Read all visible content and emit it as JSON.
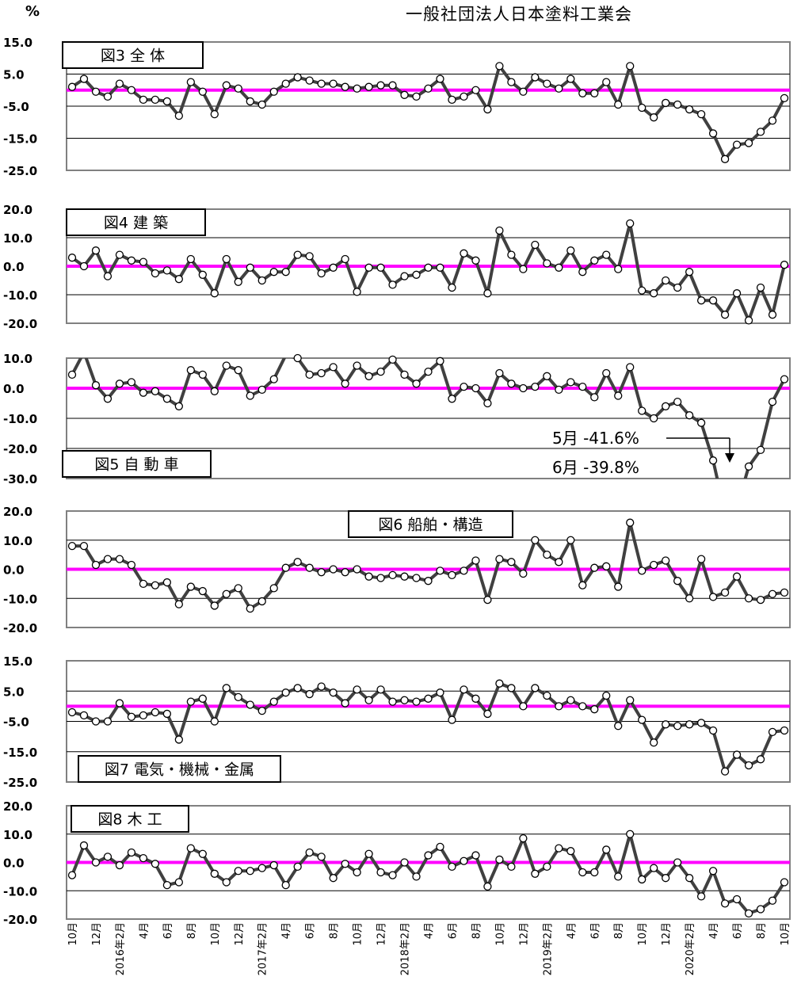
{
  "header": {
    "unit": "%",
    "organization": "一般社団法人日本塗料工業会"
  },
  "colors": {
    "line": "#404040",
    "zero_line": "#ff00ff",
    "marker_fill": "#ffffff",
    "frame": "#808080",
    "grid": "#000000"
  },
  "x_axis": {
    "labels": [
      "10月",
      "",
      "12月",
      "",
      "2016年2月",
      "",
      "4月",
      "",
      "6月",
      "",
      "8月",
      "",
      "10月",
      "",
      "12月",
      "",
      "2017年2月",
      "",
      "4月",
      "",
      "6月",
      "",
      "8月",
      "",
      "10月",
      "",
      "12月",
      "",
      "2018年2月",
      "",
      "4月",
      "",
      "6月",
      "",
      "8月",
      "",
      "10月",
      "",
      "12月",
      "",
      "2019年2月",
      "",
      "4月",
      "",
      "6月",
      "",
      "8月",
      "",
      "10月",
      "",
      "12月",
      "",
      "2020年2月",
      "",
      "4月",
      "",
      "6月",
      "",
      "8月",
      "",
      "10月"
    ]
  },
  "chart_data": [
    {
      "type": "line",
      "title": "図3 全 体",
      "ylim": [
        -25,
        15
      ],
      "yticks": [
        "15.0",
        "5.0",
        "-5.0",
        "-15.0",
        "-25.0"
      ],
      "grid": true,
      "values": [
        1,
        3.5,
        -0.5,
        -2,
        2,
        0,
        -3,
        -3,
        -3.5,
        -8,
        2.5,
        -0.5,
        -7.5,
        1.5,
        0.5,
        -3.5,
        -4.5,
        -0.5,
        2,
        4,
        3,
        2,
        2,
        1,
        0.5,
        1,
        1.5,
        1.5,
        -1.5,
        -2,
        0.5,
        3.5,
        -3,
        -2,
        0,
        -6,
        7.5,
        2.5,
        -0.5,
        4,
        2,
        0.5,
        3.5,
        -1,
        -1,
        2.5,
        -4.5,
        7.5,
        -5.5,
        -8.5,
        -4,
        -4.5,
        -6,
        -7.5,
        -13.5,
        -21.5,
        -17,
        -16.5,
        -13,
        -9.5,
        -2.5
      ],
      "annotations": []
    },
    {
      "type": "line",
      "title": "図4 建 築",
      "ylim": [
        -20,
        20
      ],
      "yticks": [
        "20.0",
        "10.0",
        "0.0",
        "-10.0",
        "-20.0"
      ],
      "grid": true,
      "values": [
        3,
        0,
        5.5,
        -3.5,
        4,
        2,
        1.5,
        -2.5,
        -1.5,
        -4.5,
        2.5,
        -3,
        -9.5,
        2.5,
        -5.5,
        -0.5,
        -5,
        -2,
        -2,
        4,
        3.5,
        -2.5,
        -0.5,
        2.5,
        -9,
        -0.5,
        -0.5,
        -6.5,
        -3.5,
        -3,
        -0.5,
        -0.5,
        -7.5,
        4.5,
        2,
        -9.5,
        12.5,
        4,
        -1,
        7.5,
        1,
        -0.5,
        5.5,
        -2,
        2,
        4,
        -1,
        15,
        -8.5,
        -9.5,
        -5,
        -7.5,
        -2,
        -12,
        -12,
        -17,
        -9.5,
        -19,
        -7.5,
        -17,
        0.5
      ],
      "annotations": []
    },
    {
      "type": "line",
      "title": "図5 自 動 車",
      "ylim": [
        -30,
        10
      ],
      "yticks": [
        "10.0",
        "0.0",
        "-10.0",
        "-20.0",
        "-30.0"
      ],
      "grid": true,
      "values": [
        4.5,
        12,
        1,
        -3.5,
        1.5,
        2,
        -1.5,
        -1,
        -3.5,
        -6,
        6,
        4.5,
        -1,
        7.5,
        6,
        -2.5,
        -0.5,
        3,
        11,
        10,
        4.5,
        5,
        7,
        1.5,
        7.5,
        4,
        5.5,
        9.5,
        4.5,
        1.5,
        5.5,
        9,
        -3.5,
        0.5,
        0,
        -5,
        5,
        1.5,
        0,
        0.5,
        4,
        -0.5,
        2,
        0.5,
        -3,
        5,
        -2.5,
        7,
        -7.5,
        -10,
        -6,
        -4.5,
        -9,
        -11.5,
        -24,
        -41.6,
        -39.8,
        -26,
        -20.5,
        -4.5,
        3
      ],
      "annotations": [
        "5月 -41.6%",
        "6月 -39.8%"
      ]
    },
    {
      "type": "line",
      "title": "図6 船舶・構造",
      "ylim": [
        -20,
        20
      ],
      "yticks": [
        "20.0",
        "10.0",
        "0.0",
        "-10.0",
        "-20.0"
      ],
      "grid": true,
      "values": [
        8,
        8,
        1.5,
        3.5,
        3.5,
        1.5,
        -5,
        -5.5,
        -4.5,
        -12,
        -6,
        -7.5,
        -12.5,
        -8.5,
        -6.5,
        -13.5,
        -11,
        -6.5,
        0.5,
        2.5,
        0.5,
        -1,
        0,
        -1,
        0,
        -2.5,
        -3,
        -2,
        -2.5,
        -3,
        -4,
        -0.5,
        -2,
        -0.5,
        3,
        -10.5,
        3.5,
        2.5,
        -1.5,
        10,
        5,
        2.5,
        10,
        -5.5,
        0.5,
        1,
        -6,
        16,
        -0.5,
        1.5,
        3,
        -4,
        -10,
        3.5,
        -9.5,
        -8,
        -2.5,
        -10,
        -10.5,
        -8.5,
        -8
      ],
      "annotations": []
    },
    {
      "type": "line",
      "title": "図7 電気・機械・金属",
      "ylim": [
        -25,
        15
      ],
      "yticks": [
        "15.0",
        "5.0",
        "-5.0",
        "-15.0",
        "-25.0"
      ],
      "grid": true,
      "values": [
        -2,
        -3,
        -5,
        -5,
        1,
        -3.5,
        -3,
        -2,
        -2.5,
        -11,
        1.5,
        2.5,
        -5,
        6,
        3,
        0.5,
        -1.5,
        1.5,
        4.5,
        6,
        4,
        6.5,
        4.5,
        1,
        5.5,
        2,
        5.5,
        1.5,
        2,
        1.5,
        2.5,
        4.5,
        -4.5,
        5.5,
        2.5,
        -2.5,
        7.5,
        6,
        0,
        6,
        3.5,
        0,
        2,
        0,
        -1,
        3.5,
        -6.5,
        2,
        -4.5,
        -12,
        -6,
        -6.5,
        -6,
        -5.5,
        -8,
        -21.5,
        -16,
        -19.5,
        -17.5,
        -8.5,
        -8
      ],
      "annotations": []
    },
    {
      "type": "line",
      "title": "図8 木 工",
      "ylim": [
        -20,
        20
      ],
      "yticks": [
        "20.0",
        "10.0",
        "0.0",
        "-10.0",
        "-20.0"
      ],
      "grid": true,
      "values": [
        -4.5,
        6,
        0,
        2,
        -1,
        3.5,
        1.5,
        -0.5,
        -8,
        -7,
        5,
        3,
        -4,
        -7,
        -3,
        -3,
        -2,
        -1,
        -8,
        -1.5,
        3.5,
        2,
        -5.5,
        -0.5,
        -3.5,
        3,
        -3.5,
        -4.5,
        0,
        -5,
        2.5,
        5.5,
        -1.5,
        0.5,
        2.5,
        -8.5,
        1,
        -1.5,
        8.5,
        -4,
        -1.5,
        5,
        4,
        -3.5,
        -3.5,
        4.5,
        -5,
        10,
        -6,
        -2,
        -5.5,
        0,
        -5.5,
        -12,
        -3,
        -14.5,
        -13,
        -18,
        -16.5,
        -13.5,
        -7
      ],
      "annotations": []
    }
  ]
}
